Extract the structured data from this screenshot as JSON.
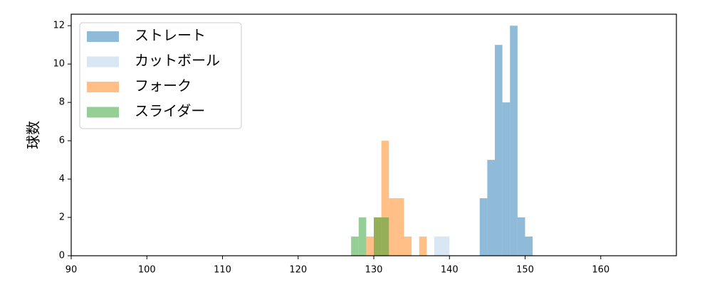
{
  "chart_data": {
    "type": "histogram",
    "ylabel": "球数",
    "xlim": [
      90,
      170
    ],
    "xticks": [
      90,
      100,
      110,
      120,
      130,
      140,
      150,
      160
    ],
    "ylim": [
      0,
      12.6
    ],
    "yticks": [
      0,
      2,
      4,
      6,
      8,
      10,
      12
    ],
    "alpha": 0.5,
    "legend": "upper left",
    "grid": false,
    "series": [
      {
        "name": "ストレート",
        "color": "#1f77b4",
        "bins": [
          144,
          145,
          146,
          147,
          148,
          149,
          150,
          151
        ],
        "values": [
          3,
          5,
          11,
          8,
          12,
          2,
          1
        ]
      },
      {
        "name": "カットボール",
        "color": "#b4cde8",
        "bins": [
          138,
          139,
          140
        ],
        "values": [
          1,
          1
        ]
      },
      {
        "name": "フォーク",
        "color": "#ff7f0e",
        "bins": [
          129,
          130,
          131,
          132,
          133,
          134,
          135,
          136,
          137
        ],
        "values": [
          1,
          2,
          6,
          3,
          3,
          1,
          0,
          1
        ]
      },
      {
        "name": "スライダー",
        "color": "#2ca02c",
        "bins": [
          127,
          128,
          129,
          130,
          131,
          132
        ],
        "values": [
          1,
          2,
          0,
          2,
          2
        ]
      }
    ]
  }
}
